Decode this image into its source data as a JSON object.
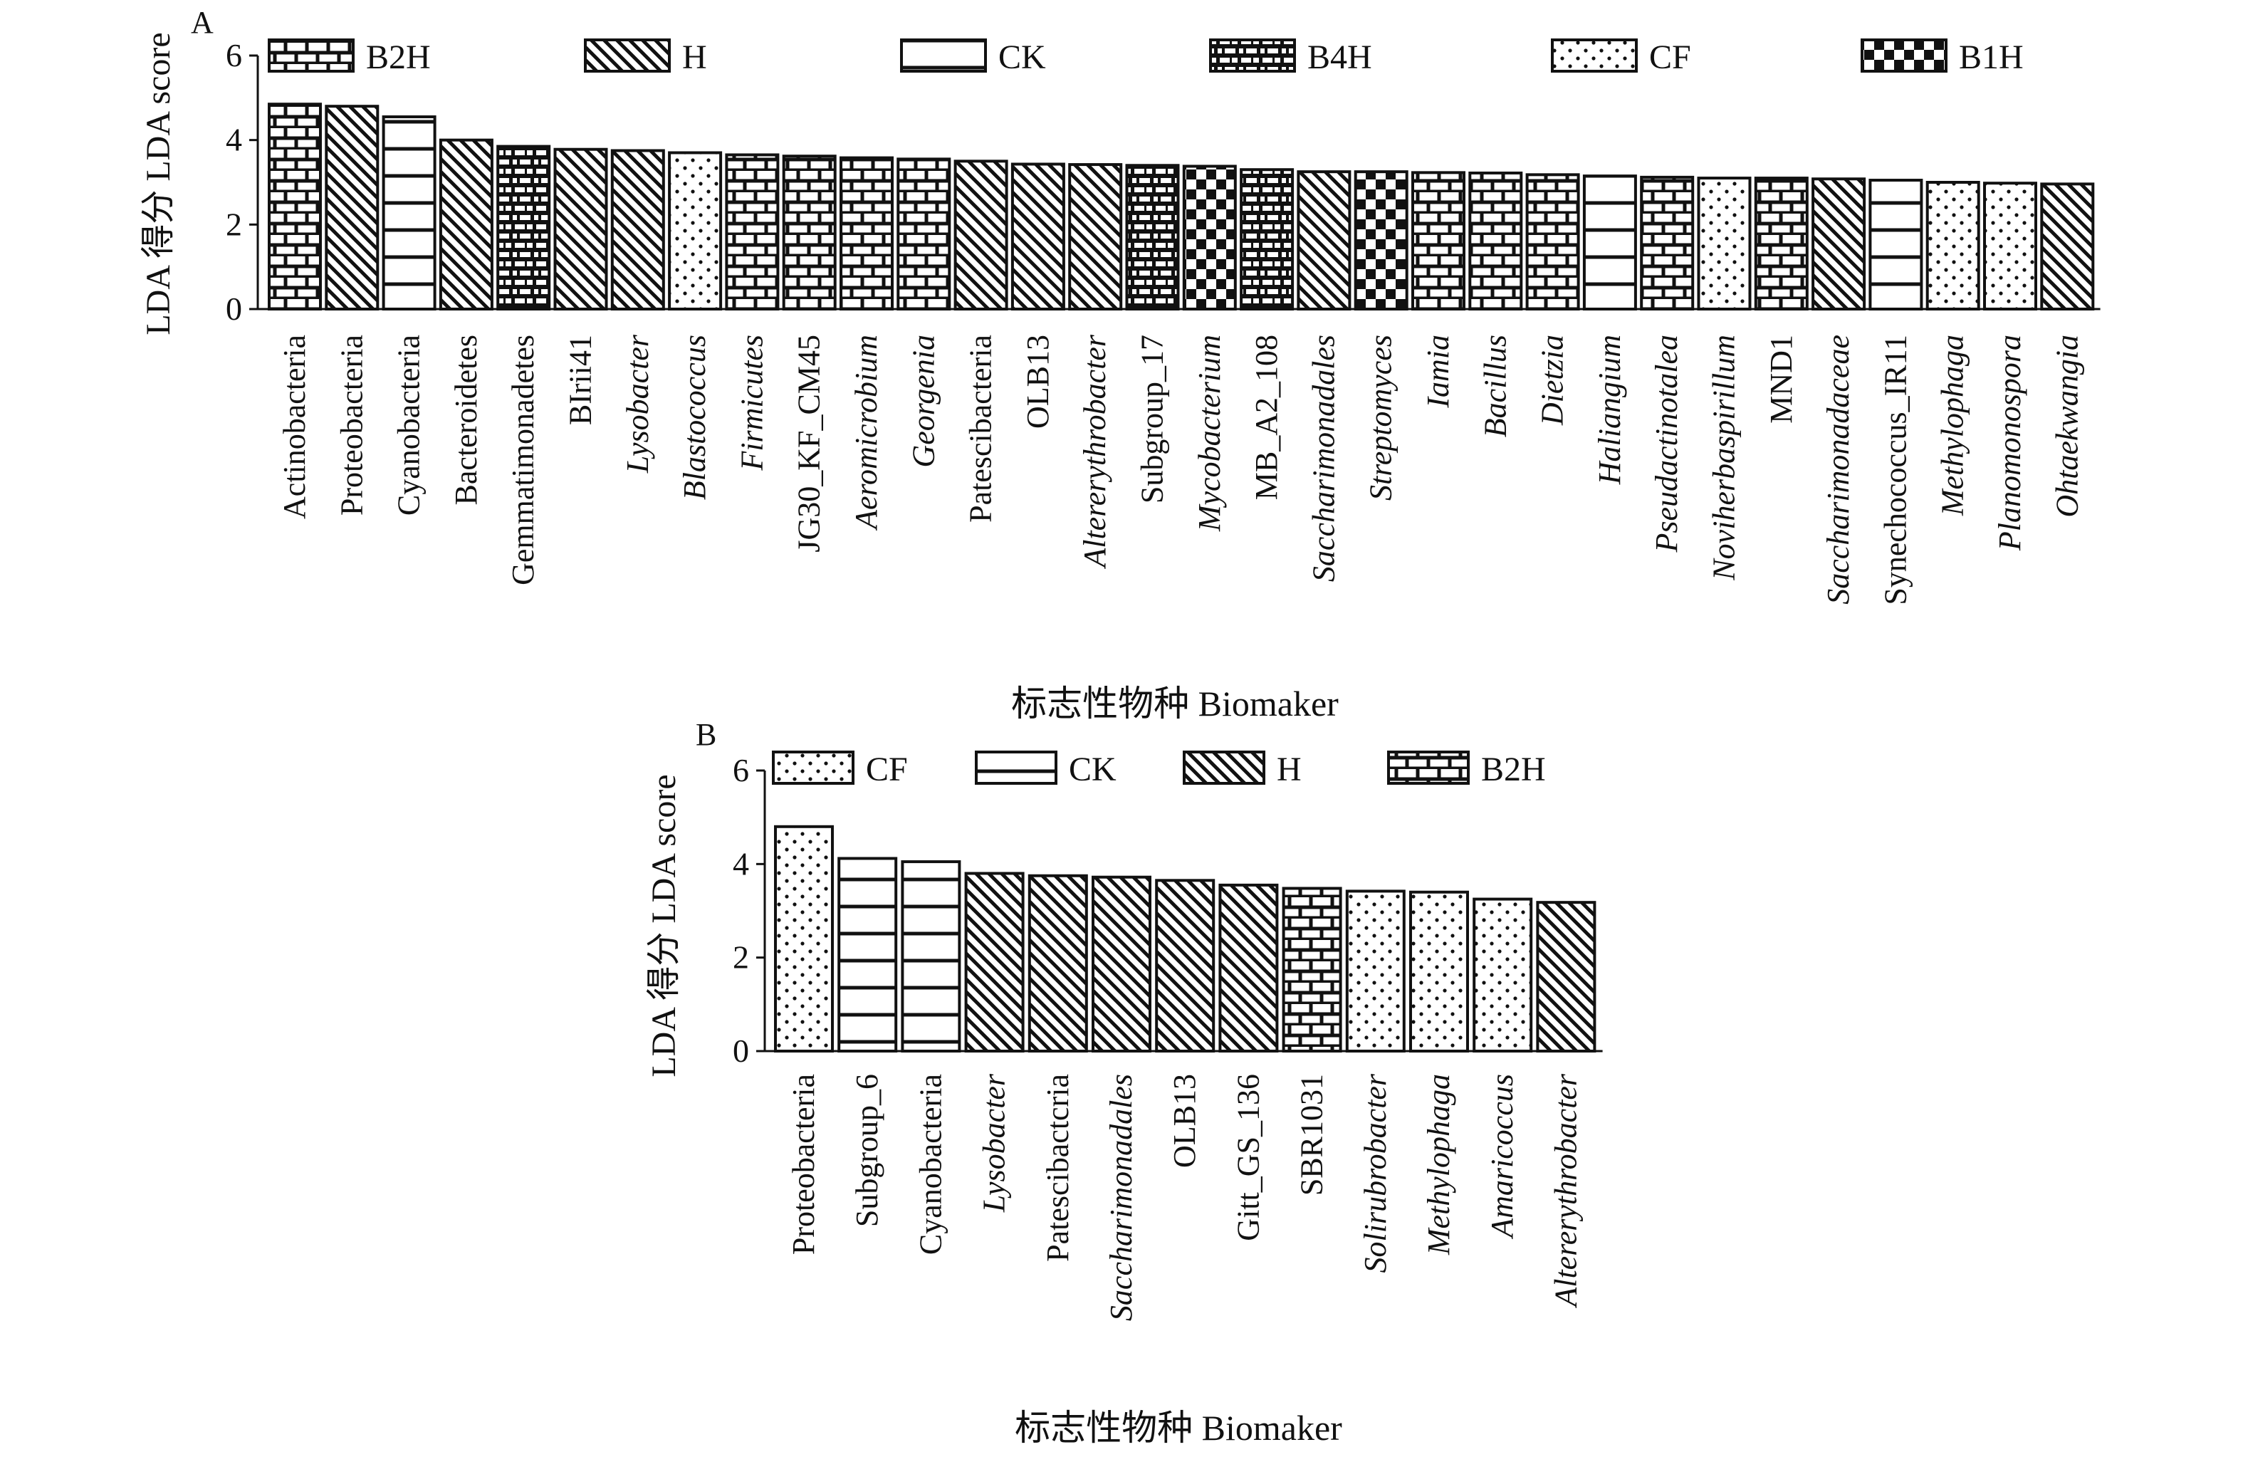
{
  "chart_data": [
    {
      "type": "bar",
      "panel_label": "A",
      "ylabel": "LDA 得分 LDA score",
      "xlabel": "标志性物种 Biomaker",
      "ylim": [
        0,
        6
      ],
      "yticks": [
        "0",
        "2",
        "4",
        "6"
      ],
      "legend": [
        {
          "label": "B2H",
          "pattern": "brick"
        },
        {
          "label": "H",
          "pattern": "diag"
        },
        {
          "label": "CK",
          "pattern": "hline"
        },
        {
          "label": "B4H",
          "pattern": "brickdark"
        },
        {
          "label": "CF",
          "pattern": "dots"
        },
        {
          "label": "B1H",
          "pattern": "checker"
        }
      ],
      "bars": [
        {
          "category": "Actinobacteria",
          "value": 4.85,
          "group": "B2H",
          "italic": false
        },
        {
          "category": "Proteobacteria",
          "value": 4.8,
          "group": "H",
          "italic": false
        },
        {
          "category": "Cyanobacteria",
          "value": 4.55,
          "group": "CK",
          "italic": false
        },
        {
          "category": "Bacteroidetes",
          "value": 4.0,
          "group": "H",
          "italic": false
        },
        {
          "category": "Gemmatimonadetes",
          "value": 3.85,
          "group": "B4H",
          "italic": false
        },
        {
          "category": "BIrii41",
          "value": 3.78,
          "group": "H",
          "italic": false
        },
        {
          "category": "Lysobacter",
          "value": 3.75,
          "group": "H",
          "italic": true
        },
        {
          "category": "Blastococcus",
          "value": 3.7,
          "group": "CF",
          "italic": true
        },
        {
          "category": "Firmicutes",
          "value": 3.65,
          "group": "B2H",
          "italic": true
        },
        {
          "category": "JG30_KF_CM45",
          "value": 3.62,
          "group": "B2H",
          "italic": false
        },
        {
          "category": "Aeromicrobium",
          "value": 3.58,
          "group": "B2H",
          "italic": true
        },
        {
          "category": "Georgenia",
          "value": 3.55,
          "group": "B2H",
          "italic": true
        },
        {
          "category": "Patescibacteria",
          "value": 3.5,
          "group": "H",
          "italic": false
        },
        {
          "category": "OLB13",
          "value": 3.43,
          "group": "H",
          "italic": false
        },
        {
          "category": "Altererythrobacter",
          "value": 3.42,
          "group": "H",
          "italic": true
        },
        {
          "category": "Subgroup_17",
          "value": 3.4,
          "group": "B4H",
          "italic": false
        },
        {
          "category": "Mycobacterium",
          "value": 3.38,
          "group": "B1H",
          "italic": true
        },
        {
          "category": "MB_A2_108",
          "value": 3.3,
          "group": "B4H",
          "italic": false
        },
        {
          "category": "Saccharimonadales",
          "value": 3.25,
          "group": "H",
          "italic": true
        },
        {
          "category": "Streptomyces",
          "value": 3.25,
          "group": "B1H",
          "italic": true
        },
        {
          "category": "Iamia",
          "value": 3.23,
          "group": "B2H",
          "italic": true
        },
        {
          "category": "Bacillus",
          "value": 3.22,
          "group": "B2H",
          "italic": true
        },
        {
          "category": "Dietzia",
          "value": 3.18,
          "group": "B2H",
          "italic": true
        },
        {
          "category": "Haliangium",
          "value": 3.15,
          "group": "CK",
          "italic": true
        },
        {
          "category": "Pseudactinotalea",
          "value": 3.12,
          "group": "B2H",
          "italic": true
        },
        {
          "category": "Noviherbaspirillum",
          "value": 3.1,
          "group": "CF",
          "italic": true
        },
        {
          "category": "MND1",
          "value": 3.1,
          "group": "B2H",
          "italic": false
        },
        {
          "category": "Saccharimonadaceae",
          "value": 3.08,
          "group": "H",
          "italic": true
        },
        {
          "category": "Synechococcus_IR11",
          "value": 3.05,
          "group": "CK",
          "italic": false
        },
        {
          "category": "Methylophaga",
          "value": 3.0,
          "group": "CF",
          "italic": true
        },
        {
          "category": "Planomonospora",
          "value": 2.98,
          "group": "CF",
          "italic": true
        },
        {
          "category": "Ohtaekwangia",
          "value": 2.96,
          "group": "H",
          "italic": true
        }
      ]
    },
    {
      "type": "bar",
      "panel_label": "B",
      "ylabel": "LDA 得分 LDA score",
      "xlabel": "标志性物种 Biomaker",
      "ylim": [
        0,
        6
      ],
      "yticks": [
        "0",
        "2",
        "4",
        "6"
      ],
      "legend": [
        {
          "label": "CF",
          "pattern": "dots"
        },
        {
          "label": "CK",
          "pattern": "hline"
        },
        {
          "label": "H",
          "pattern": "diag"
        },
        {
          "label": "B2H",
          "pattern": "brick"
        }
      ],
      "bars": [
        {
          "category": "Proteobacteria",
          "value": 4.8,
          "group": "CF",
          "italic": false
        },
        {
          "category": "Subgroup_6",
          "value": 4.12,
          "group": "CK",
          "italic": false
        },
        {
          "category": "Cyanobacteria",
          "value": 4.05,
          "group": "CK",
          "italic": false
        },
        {
          "category": "Lysobacter",
          "value": 3.8,
          "group": "H",
          "italic": true
        },
        {
          "category": "Patescibactcria",
          "value": 3.75,
          "group": "H",
          "italic": false
        },
        {
          "category": "Saccharimonadales",
          "value": 3.72,
          "group": "H",
          "italic": true
        },
        {
          "category": "OLB13",
          "value": 3.65,
          "group": "H",
          "italic": false
        },
        {
          "category": "Gitt_GS_136",
          "value": 3.55,
          "group": "H",
          "italic": false
        },
        {
          "category": "SBR1031",
          "value": 3.48,
          "group": "B2H",
          "italic": false
        },
        {
          "category": "Solirubrobacter",
          "value": 3.42,
          "group": "CF",
          "italic": true
        },
        {
          "category": "Methylophaga",
          "value": 3.4,
          "group": "CF",
          "italic": true
        },
        {
          "category": "Amaricoccus",
          "value": 3.25,
          "group": "CF",
          "italic": true
        },
        {
          "category": "Altererythrobacter",
          "value": 3.18,
          "group": "H",
          "italic": true
        }
      ]
    }
  ]
}
